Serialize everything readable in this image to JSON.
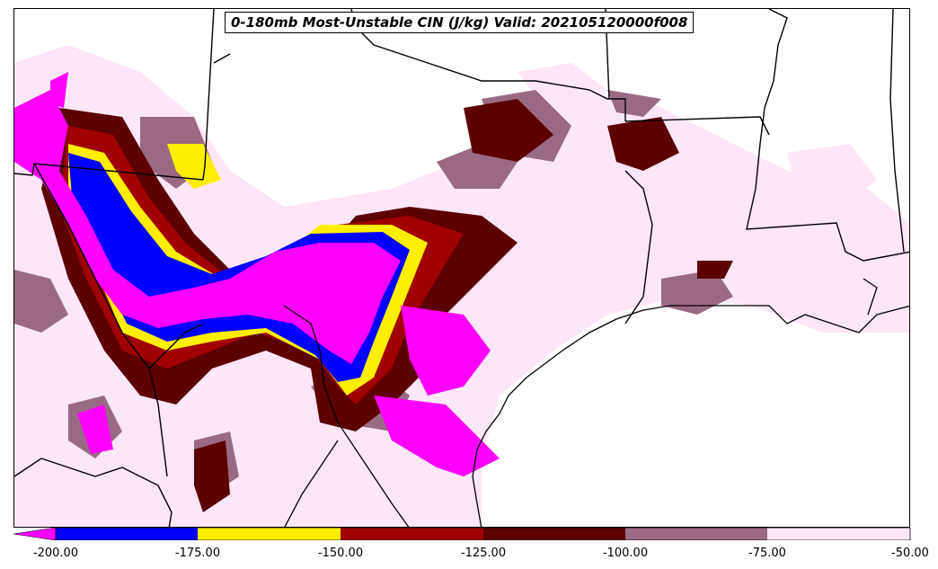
{
  "title": "0-180mb Most-Unstable CIN (J/kg) Valid: 202105120000f008",
  "colorbar": {
    "bins": [
      {
        "from": -200,
        "to": -175,
        "color": "#0000ff"
      },
      {
        "from": -175,
        "to": -150,
        "color": "#ffee00"
      },
      {
        "from": -150,
        "to": -125,
        "color": "#a00000"
      },
      {
        "from": -125,
        "to": -100,
        "color": "#5c0000"
      },
      {
        "from": -100,
        "to": -75,
        "color": "#9a6a84"
      },
      {
        "from": -75,
        "to": -50,
        "color": "#fde6f7"
      }
    ],
    "under_color": "#ff00ff",
    "tick_labels": [
      "-200.00",
      "-175.00",
      "-150.00",
      "-125.00",
      "-100.00",
      "-75.00",
      "-50.00"
    ]
  },
  "colors": {
    "magenta": "#ff00ff",
    "blue": "#0000ff",
    "yellow": "#ffee00",
    "red": "#a00000",
    "dark_red": "#5c0000",
    "mauve": "#9a6a84",
    "pink": "#fde6f7"
  }
}
